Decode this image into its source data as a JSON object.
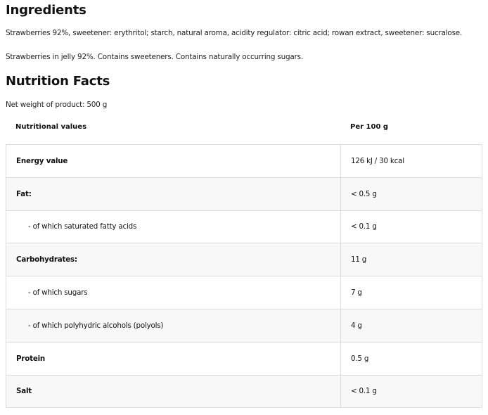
{
  "ingredients": {
    "title": "Ingredients",
    "text": "Strawberries 92%, sweetener: erythritol; starch, natural aroma, acidity regulator: citric acid; rowan extract, sweetener: sucralose.",
    "note": "Strawberries in jelly 92%. Contains sweeteners. Contains naturally occurring sugars."
  },
  "nutrition": {
    "title": "Nutrition Facts",
    "net_weight": "Net weight of product: 500 g",
    "headers": [
      "Nutritional values",
      "Per 100 g"
    ],
    "rows": [
      {
        "label": "Energy value",
        "value": "126 kJ / 30 kcal"
      },
      {
        "label": "Fat:",
        "value": "< 0.5 g"
      },
      {
        "label": "- of which saturated fatty acids",
        "value": "< 0.1 g"
      },
      {
        "label": "Carbohydrates:",
        "value": "11 g"
      },
      {
        "label": "- of which sugars",
        "value": "7 g"
      },
      {
        "label": "- of which polyhydric alcohols (polyols)",
        "value": "4 g"
      },
      {
        "label": "Protein",
        "value": "0.5 g"
      },
      {
        "label": "Salt",
        "value": "< 0.1 g"
      }
    ]
  }
}
